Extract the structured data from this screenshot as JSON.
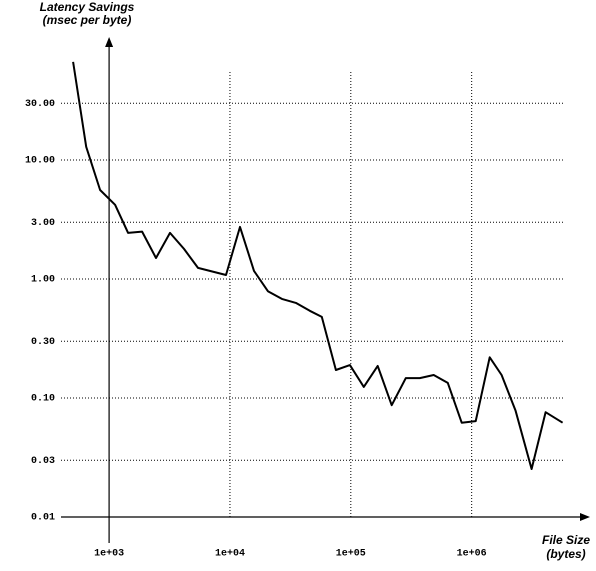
{
  "chart_data": {
    "type": "line",
    "y_label": [
      "Latency Savings",
      "(msec per byte)"
    ],
    "x_label": [
      "File Size",
      "(bytes)"
    ],
    "x": [
      504,
      646,
      843,
      1121,
      1435,
      1874,
      2445,
      3190,
      4170,
      5440,
      9270,
      12100,
      15800,
      20600,
      26900,
      35100,
      45800,
      57500,
      75200,
      98200,
      128000,
      167000,
      218000,
      285000,
      372000,
      485000,
      634000,
      827000,
      1080000,
      1410000,
      1770000,
      2310000,
      3130000,
      4090000,
      5650000
    ],
    "series": [
      {
        "color": "#000000",
        "values": [
          66.7,
          12.9,
          5.6,
          4.2,
          2.44,
          2.5,
          1.5,
          2.44,
          1.79,
          1.24,
          1.08,
          2.74,
          1.17,
          0.79,
          0.68,
          0.63,
          0.54,
          0.48,
          0.172,
          0.189,
          0.124,
          0.186,
          0.087,
          0.147,
          0.147,
          0.156,
          0.134,
          0.062,
          0.064,
          0.22,
          0.156,
          0.078,
          0.0253,
          0.076,
          0.062
        ]
      }
    ],
    "xlog": true,
    "ylog": true,
    "xlim": [
      400,
      9000000
    ],
    "ylim": [
      0.01,
      100
    ],
    "xticks": [
      {
        "value": 1000,
        "label": "1e+03"
      },
      {
        "value": 10000,
        "label": "1e+04"
      },
      {
        "value": 100000,
        "label": "1e+05"
      },
      {
        "value": 1000000,
        "label": "1e+06"
      }
    ],
    "yticks": [
      0.01,
      0.03,
      {
        "value": 0.1,
        "label": "0.10"
      },
      {
        "value": 0.3,
        "label": "0.30"
      },
      {
        "value": 1,
        "label": "1.00"
      },
      {
        "value": 3,
        "label": "3.00"
      },
      {
        "value": 10,
        "label": "10.00"
      },
      {
        "value": 30,
        "label": "30.00"
      }
    ],
    "grid": true
  }
}
